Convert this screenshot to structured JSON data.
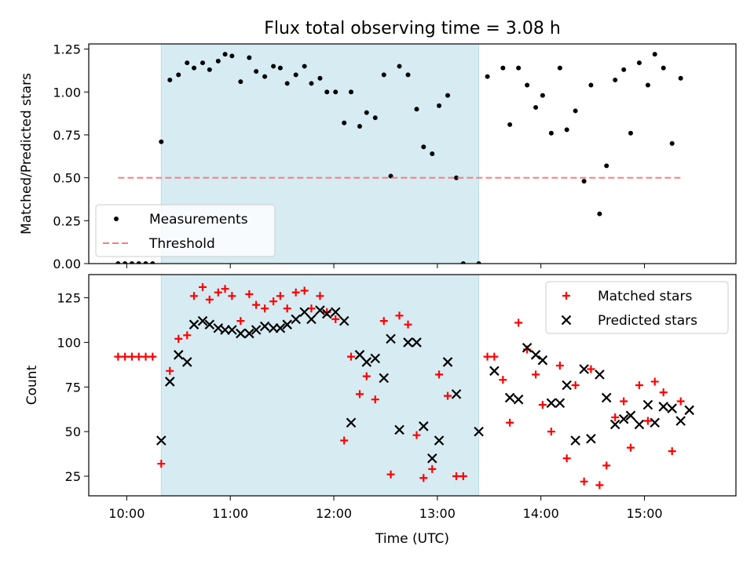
{
  "chart_data": [
    {
      "type": "scatter",
      "title": "Flux total observing time = 3.08 h",
      "xlabel": "",
      "ylabel": "Matched/Predicted stars",
      "ylim": [
        0,
        1.28
      ],
      "yticks": [
        "0.00",
        "0.25",
        "0.50",
        "0.75",
        "1.00",
        "1.25"
      ],
      "ytick_values": [
        0,
        0.25,
        0.5,
        0.75,
        1.0,
        1.25
      ],
      "legend_position": "lower-left",
      "shaded_interval": {
        "start": "10:20",
        "end": "13:24",
        "color": "#add8e6"
      },
      "series": [
        {
          "name": "Measurements",
          "marker": "dot",
          "color": "#000000",
          "points": [
            [
              "09:55",
              0
            ],
            [
              "09:59",
              0
            ],
            [
              "10:03",
              0
            ],
            [
              "10:07",
              0
            ],
            [
              "10:11",
              0
            ],
            [
              "10:15",
              0
            ],
            [
              "10:20",
              0.71
            ],
            [
              "10:25",
              1.07
            ],
            [
              "10:30",
              1.1
            ],
            [
              "10:35",
              1.17
            ],
            [
              "10:39",
              1.14
            ],
            [
              "10:44",
              1.17
            ],
            [
              "10:48",
              1.13
            ],
            [
              "10:53",
              1.18
            ],
            [
              "10:57",
              1.22
            ],
            [
              "11:01",
              1.21
            ],
            [
              "11:06",
              1.06
            ],
            [
              "11:11",
              1.2
            ],
            [
              "11:15",
              1.12
            ],
            [
              "11:20",
              1.09
            ],
            [
              "11:25",
              1.15
            ],
            [
              "11:29",
              1.14
            ],
            [
              "11:33",
              1.05
            ],
            [
              "11:38",
              1.1
            ],
            [
              "11:43",
              1.15
            ],
            [
              "11:47",
              1.05
            ],
            [
              "11:52",
              1.08
            ],
            [
              "11:56",
              1.0
            ],
            [
              "12:01",
              1.0
            ],
            [
              "12:06",
              0.82
            ],
            [
              "12:10",
              1.0
            ],
            [
              "12:15",
              0.8
            ],
            [
              "12:19",
              0.88
            ],
            [
              "12:24",
              0.85
            ],
            [
              "12:29",
              1.1
            ],
            [
              "12:33",
              0.51
            ],
            [
              "12:38",
              1.15
            ],
            [
              "12:43",
              1.1
            ],
            [
              "12:48",
              0.9
            ],
            [
              "12:52",
              0.68
            ],
            [
              "12:57",
              0.64
            ],
            [
              "13:01",
              0.92
            ],
            [
              "13:06",
              0.98
            ],
            [
              "13:11",
              0.5
            ],
            [
              "13:15",
              0
            ],
            [
              "13:24",
              0
            ],
            [
              "13:29",
              1.09
            ],
            [
              "13:38",
              1.14
            ],
            [
              "13:42",
              0.81
            ],
            [
              "13:47",
              1.14
            ],
            [
              "13:52",
              1.04
            ],
            [
              "13:57",
              0.91
            ],
            [
              "14:01",
              0.98
            ],
            [
              "14:06",
              0.76
            ],
            [
              "14:11",
              1.14
            ],
            [
              "14:15",
              0.78
            ],
            [
              "14:20",
              0.89
            ],
            [
              "14:25",
              0.48
            ],
            [
              "14:29",
              1.04
            ],
            [
              "14:34",
              0.29
            ],
            [
              "14:38",
              0.57
            ],
            [
              "14:43",
              1.07
            ],
            [
              "14:48",
              1.13
            ],
            [
              "14:52",
              0.76
            ],
            [
              "14:57",
              1.17
            ],
            [
              "15:02",
              1.04
            ],
            [
              "15:06",
              1.22
            ],
            [
              "15:11",
              1.14
            ],
            [
              "15:16",
              0.7
            ],
            [
              "15:21",
              1.08
            ]
          ]
        },
        {
          "name": "Threshold",
          "marker": "dashed-line",
          "color": "#f08080",
          "points": [
            [
              "09:55",
              0.5
            ],
            [
              "15:21",
              0.5
            ]
          ]
        }
      ]
    },
    {
      "type": "scatter",
      "title": "",
      "xlabel": "Time (UTC)",
      "ylabel": "Count",
      "ylim": [
        14,
        138
      ],
      "yticks": [
        "25",
        "50",
        "75",
        "100",
        "125"
      ],
      "ytick_values": [
        25,
        50,
        75,
        100,
        125
      ],
      "xticks": [
        "10:00",
        "11:00",
        "12:00",
        "13:00",
        "14:00",
        "15:00"
      ],
      "xlim": [
        "09:38",
        "15:53"
      ],
      "legend_position": "top-right",
      "shaded_interval": {
        "start": "10:20",
        "end": "13:24",
        "color": "#add8e6"
      },
      "series": [
        {
          "name": "Matched stars",
          "marker": "plus",
          "color": "#ff0000",
          "points": [
            [
              "09:55",
              92
            ],
            [
              "09:59",
              92
            ],
            [
              "10:03",
              92
            ],
            [
              "10:07",
              92
            ],
            [
              "10:11",
              92
            ],
            [
              "10:15",
              92
            ],
            [
              "10:20",
              32
            ],
            [
              "10:25",
              84
            ],
            [
              "10:30",
              102
            ],
            [
              "10:35",
              104
            ],
            [
              "10:39",
              126
            ],
            [
              "10:44",
              131
            ],
            [
              "10:48",
              124
            ],
            [
              "10:53",
              128
            ],
            [
              "10:57",
              130
            ],
            [
              "11:01",
              126
            ],
            [
              "11:06",
              112
            ],
            [
              "11:11",
              127
            ],
            [
              "11:15",
              121
            ],
            [
              "11:20",
              119
            ],
            [
              "11:25",
              123
            ],
            [
              "11:29",
              126
            ],
            [
              "11:33",
              119
            ],
            [
              "11:38",
              128
            ],
            [
              "11:43",
              129
            ],
            [
              "11:47",
              119
            ],
            [
              "11:52",
              126
            ],
            [
              "11:56",
              117
            ],
            [
              "12:01",
              113
            ],
            [
              "12:06",
              45
            ],
            [
              "12:10",
              92
            ],
            [
              "12:15",
              71
            ],
            [
              "12:19",
              81
            ],
            [
              "12:24",
              68
            ],
            [
              "12:29",
              112
            ],
            [
              "12:33",
              26
            ],
            [
              "12:38",
              115
            ],
            [
              "12:43",
              110
            ],
            [
              "12:48",
              48
            ],
            [
              "12:52",
              24
            ],
            [
              "12:57",
              29
            ],
            [
              "13:01",
              82
            ],
            [
              "13:06",
              70
            ],
            [
              "13:11",
              25
            ],
            [
              "13:15",
              25
            ],
            [
              "13:29",
              92
            ],
            [
              "13:33",
              92
            ],
            [
              "13:38",
              79
            ],
            [
              "13:42",
              55
            ],
            [
              "13:47",
              111
            ],
            [
              "13:52",
              96
            ],
            [
              "13:57",
              82
            ],
            [
              "14:01",
              65
            ],
            [
              "14:06",
              50
            ],
            [
              "14:11",
              87
            ],
            [
              "14:15",
              35
            ],
            [
              "14:20",
              76
            ],
            [
              "14:25",
              22
            ],
            [
              "14:29",
              85
            ],
            [
              "14:34",
              20
            ],
            [
              "14:38",
              31
            ],
            [
              "14:43",
              58
            ],
            [
              "14:48",
              67
            ],
            [
              "14:52",
              41
            ],
            [
              "14:57",
              76
            ],
            [
              "15:02",
              56
            ],
            [
              "15:06",
              78
            ],
            [
              "15:11",
              72
            ],
            [
              "15:16",
              39
            ],
            [
              "15:21",
              67
            ]
          ]
        },
        {
          "name": "Predicted stars",
          "marker": "x",
          "color": "#000000",
          "points": [
            [
              "10:20",
              45
            ],
            [
              "10:25",
              78
            ],
            [
              "10:30",
              93
            ],
            [
              "10:35",
              89
            ],
            [
              "10:39",
              110
            ],
            [
              "10:44",
              112
            ],
            [
              "10:48",
              110
            ],
            [
              "10:53",
              108
            ],
            [
              "10:57",
              107
            ],
            [
              "11:01",
              107
            ],
            [
              "11:06",
              105
            ],
            [
              "11:11",
              105
            ],
            [
              "11:15",
              107
            ],
            [
              "11:20",
              109
            ],
            [
              "11:25",
              108
            ],
            [
              "11:29",
              108
            ],
            [
              "11:33",
              110
            ],
            [
              "11:38",
              113
            ],
            [
              "11:43",
              117
            ],
            [
              "11:47",
              113
            ],
            [
              "11:52",
              118
            ],
            [
              "11:56",
              116
            ],
            [
              "12:01",
              117
            ],
            [
              "12:06",
              112
            ],
            [
              "12:10",
              55
            ],
            [
              "12:15",
              93
            ],
            [
              "12:19",
              89
            ],
            [
              "12:24",
              91
            ],
            [
              "12:29",
              80
            ],
            [
              "12:33",
              102
            ],
            [
              "12:38",
              51
            ],
            [
              "12:43",
              100
            ],
            [
              "12:48",
              100
            ],
            [
              "12:52",
              53
            ],
            [
              "12:57",
              35
            ],
            [
              "13:01",
              45
            ],
            [
              "13:06",
              89
            ],
            [
              "13:11",
              71
            ],
            [
              "13:24",
              50
            ],
            [
              "13:33",
              84
            ],
            [
              "13:42",
              69
            ],
            [
              "13:47",
              68
            ],
            [
              "13:52",
              97
            ],
            [
              "13:57",
              93
            ],
            [
              "14:01",
              90
            ],
            [
              "14:06",
              66
            ],
            [
              "14:11",
              66
            ],
            [
              "14:15",
              76
            ],
            [
              "14:20",
              45
            ],
            [
              "14:25",
              85
            ],
            [
              "14:29",
              46
            ],
            [
              "14:34",
              82
            ],
            [
              "14:38",
              69
            ],
            [
              "14:43",
              54
            ],
            [
              "14:48",
              57
            ],
            [
              "14:52",
              59
            ],
            [
              "14:57",
              54
            ],
            [
              "15:02",
              65
            ],
            [
              "15:06",
              55
            ],
            [
              "15:11",
              64
            ],
            [
              "15:16",
              63
            ],
            [
              "15:21",
              56
            ],
            [
              "15:26",
              62
            ]
          ]
        }
      ]
    }
  ]
}
